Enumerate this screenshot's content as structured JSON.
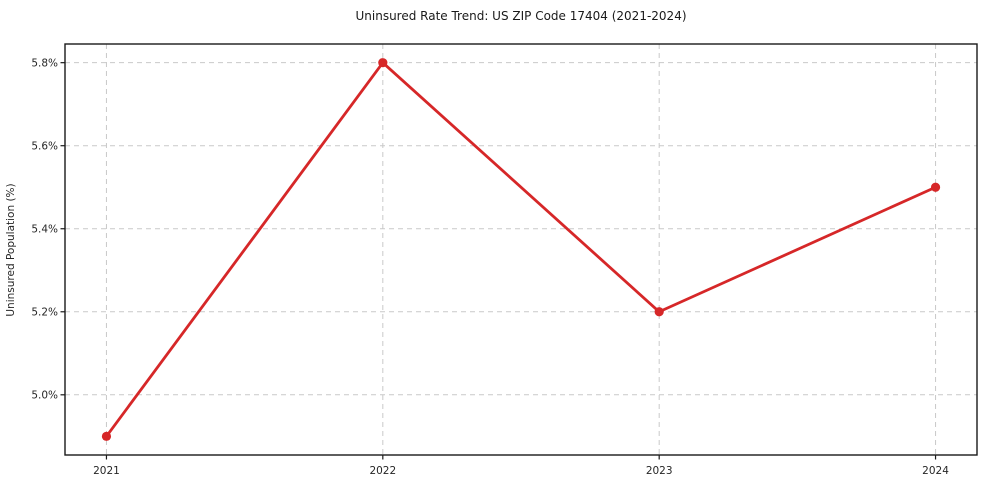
{
  "figure": {
    "title": "Uninsured Rate Trend: US ZIP Code 17404 (2021-2024)"
  },
  "chart_data": {
    "type": "line",
    "title": "Uninsured Rate Trend: US ZIP Code 17404 (2021-2024)",
    "xlabel": "",
    "ylabel": "Uninsured Population (%)",
    "x": [
      2021,
      2022,
      2023,
      2024
    ],
    "x_tick_labels": [
      "2021",
      "2022",
      "2023",
      "2024"
    ],
    "series": [
      {
        "name": "Uninsured Rate",
        "values": [
          4.9,
          5.8,
          5.2,
          5.5
        ]
      }
    ],
    "unit": "%",
    "y_ticks": [
      5.0,
      5.2,
      5.4,
      5.6,
      5.8
    ],
    "y_tick_labels": [
      "5.0%",
      "5.2%",
      "5.4%",
      "5.6%",
      "5.8%"
    ],
    "ylim": [
      4.855,
      5.845
    ],
    "xlim": [
      2020.85,
      2024.15
    ],
    "grid": true,
    "grid_style": "dashed",
    "legend": "none",
    "marker": "circle",
    "colors": {
      "line": "#d62728",
      "marker": "#d62728",
      "grid": "#c9c9c9",
      "axis_border": "#1a1a1a",
      "tick": "#1a1a1a",
      "text": "#262626",
      "background": "#ffffff"
    }
  }
}
